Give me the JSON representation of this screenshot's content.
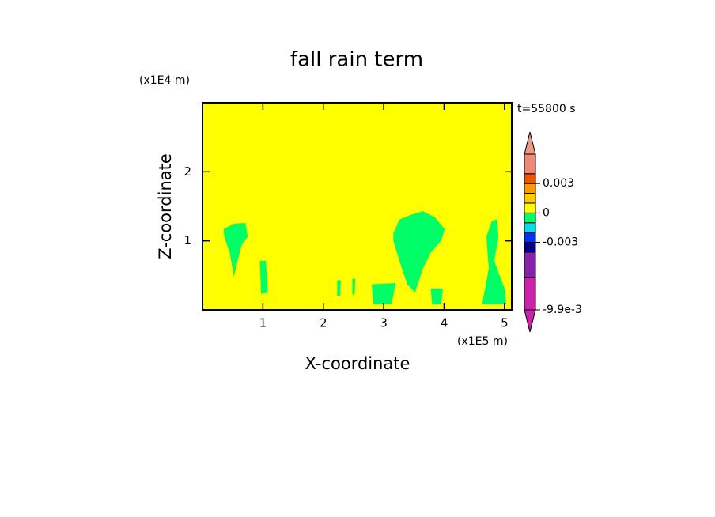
{
  "chart_data": {
    "type": "contour",
    "title": "fall rain term",
    "x_label": "X-coordinate",
    "y_label": "Z-coordinate",
    "x_unit": "(x1E5 m)",
    "y_unit": "(x1E4 m)",
    "annotation": "t=55800 s",
    "xlim": [
      0,
      5.12
    ],
    "ylim": [
      0,
      3
    ],
    "xticks": [
      1,
      2,
      3,
      4,
      5
    ],
    "yticks": [
      1,
      2
    ],
    "levels": [
      -0.0099,
      -0.0066,
      -0.004,
      -0.003,
      -0.002,
      -0.001,
      0,
      0.001,
      0.002,
      0.003,
      0.004,
      0.006
    ],
    "colors": [
      "#cc22aa",
      "#8822aa",
      "#000088",
      "#0033ee",
      "#00ddee",
      "#00ff66",
      "#ffff00",
      "#ffcc00",
      "#ff9900",
      "#ee5500",
      "#ee8877"
    ],
    "extend_colors": [
      "#cc22aa",
      "#ee9988"
    ],
    "colorbar_ticks": [
      {
        "value": -0.0099,
        "label": "-9.9e-3"
      },
      -0.003,
      0,
      0.003
    ],
    "background_level": 6,
    "regions": [
      {
        "level": 5,
        "x": [
          0.35,
          0.52,
          0.71,
          0.75,
          0.65,
          0.58,
          0.52,
          0.45,
          0.36
        ],
        "y": [
          1.17,
          1.25,
          1.26,
          1.06,
          0.94,
          0.71,
          0.48,
          0.83,
          1.06
        ]
      },
      {
        "level": 5,
        "x": [
          3.16,
          3.26,
          3.46,
          3.65,
          3.85,
          4.01,
          3.95,
          3.78,
          3.65,
          3.52,
          3.39,
          3.26,
          3.16
        ],
        "y": [
          1.11,
          1.31,
          1.38,
          1.43,
          1.34,
          1.17,
          1.0,
          0.83,
          0.6,
          0.25,
          0.37,
          0.71,
          1.0
        ]
      },
      {
        "level": 5,
        "x": [
          4.7,
          4.79,
          4.87,
          4.9,
          4.83,
          5.0,
          5.03,
          4.63,
          4.74
        ],
        "y": [
          1.06,
          1.29,
          1.31,
          1.06,
          0.71,
          0.31,
          0.08,
          0.08,
          0.6
        ]
      },
      {
        "level": 5,
        "x": [
          0.95,
          1.05,
          1.08,
          0.97
        ],
        "y": [
          0.71,
          0.71,
          0.25,
          0.23
        ]
      },
      {
        "level": 5,
        "x": [
          2.8,
          3.2,
          3.13,
          2.83
        ],
        "y": [
          0.37,
          0.39,
          0.08,
          0.08
        ]
      },
      {
        "level": 5,
        "x": [
          2.23,
          2.29,
          2.28,
          2.23
        ],
        "y": [
          0.43,
          0.43,
          0.2,
          0.2
        ]
      },
      {
        "level": 5,
        "x": [
          2.48,
          2.53,
          2.52,
          2.48
        ],
        "y": [
          0.45,
          0.45,
          0.22,
          0.22
        ]
      },
      {
        "level": 5,
        "x": [
          3.78,
          3.98,
          3.95,
          3.8
        ],
        "y": [
          0.31,
          0.31,
          0.08,
          0.08
        ]
      }
    ]
  }
}
